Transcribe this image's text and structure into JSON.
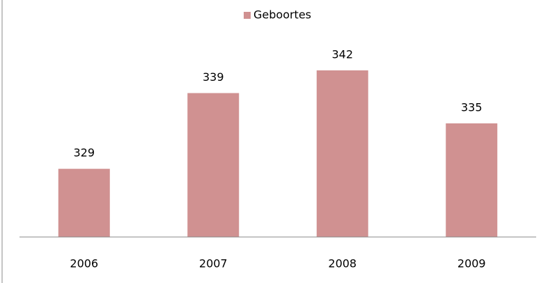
{
  "chart_data": {
    "type": "bar",
    "categories": [
      "2006",
      "2007",
      "2008",
      "2009"
    ],
    "series": [
      {
        "name": "Geboortes",
        "color": "#d09191",
        "values": [
          329,
          339,
          342,
          335
        ]
      }
    ],
    "ylim": [
      320,
      350
    ],
    "legend": "top"
  }
}
